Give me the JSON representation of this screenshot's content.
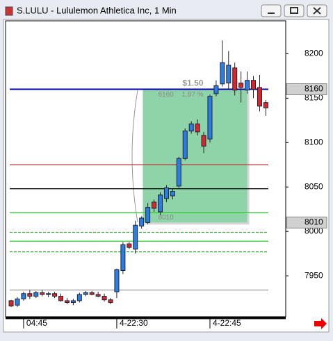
{
  "window_title": "S.LULU - Lululemon Athletica Inc, 1 Min",
  "chart_data": {
    "type": "candlestick",
    "x": [
      -2,
      -1,
      0,
      1,
      2,
      3,
      4,
      5,
      6,
      7,
      8,
      9,
      10,
      11,
      12,
      13,
      14,
      15,
      16,
      17,
      18,
      19,
      20,
      21,
      22,
      23,
      24,
      25,
      26,
      27,
      28,
      29,
      30,
      31,
      32,
      33,
      34,
      35,
      36,
      37,
      38,
      39
    ],
    "open": [
      7922,
      7917,
      7924,
      7930,
      7927,
      7931,
      7929,
      7930,
      7927,
      7922,
      7920,
      7922,
      7929,
      7931,
      7929,
      7927,
      7923,
      7932,
      7956,
      7986,
      7980,
      8006,
      8010,
      8033,
      8022,
      8037,
      8040,
      8051,
      8082,
      8113,
      8121,
      8108,
      8104,
      8155,
      8166,
      8167,
      8184,
      8167,
      8159,
      8170,
      8162,
      8145
    ],
    "high": [
      7923,
      7926,
      7932,
      7934,
      7933,
      7934,
      7932,
      7932,
      7930,
      7925,
      7924,
      7931,
      7933,
      7933,
      7932,
      7930,
      7925,
      7958,
      7988,
      7988,
      8012,
      8017,
      8032,
      8036,
      8044,
      8052,
      8048,
      8084,
      8116,
      8124,
      8126,
      8112,
      8154,
      8170,
      8215,
      8203,
      8190,
      8180,
      8180,
      8175,
      8176,
      8148
    ],
    "low": [
      7915,
      7915,
      7922,
      7924,
      7925,
      7927,
      7926,
      7925,
      7921,
      7918,
      7917,
      7920,
      7927,
      7928,
      7926,
      7921,
      7918,
      7925,
      7952,
      7980,
      7975,
      8003,
      8008,
      8022,
      8018,
      8033,
      8036,
      8049,
      8080,
      8110,
      8108,
      8088,
      8100,
      8152,
      8163,
      8160,
      8153,
      8145,
      8155,
      8150,
      8135,
      8130
    ],
    "close": [
      7916,
      7924,
      7930,
      7927,
      7931,
      7929,
      7930,
      7927,
      7922,
      7920,
      7922,
      7929,
      7931,
      7929,
      7927,
      7923,
      7920,
      7957,
      7985,
      7982,
      8007,
      8015,
      8027,
      8026,
      8041,
      8049,
      8045,
      8082,
      8113,
      8121,
      8112,
      8096,
      8152,
      8164,
      8190,
      8187,
      8159,
      8162,
      8170,
      8160,
      8141,
      8139
    ],
    "up_color": "#2a7de1",
    "down_color": "#d8262c",
    "xlim": [
      -2.9,
      42.2
    ],
    "xticks": [
      {
        "value": 0,
        "label": "04:45"
      },
      {
        "value": 15,
        "label": "4-22:30"
      },
      {
        "value": 30,
        "label": "4-22:45"
      }
    ],
    "ylim": [
      7904,
      8237
    ],
    "yticks": [
      7950,
      8000,
      8050,
      8100,
      8150,
      8200
    ],
    "levels": [
      {
        "value": 8160,
        "color": "#0000b0",
        "dashed": false
      },
      {
        "value": 8075,
        "color": "#b03030",
        "dashed": false
      },
      {
        "value": 8048,
        "color": "#000000",
        "dashed": false
      },
      {
        "value": 8021,
        "color": "#33cc33",
        "dashed": false
      },
      {
        "value": 7999,
        "color": "#33aa33",
        "dashed": true
      },
      {
        "value": 7989,
        "color": "#22cc22",
        "dashed": false
      },
      {
        "value": 7977,
        "color": "#33aa33",
        "dashed": true
      },
      {
        "value": 7934,
        "color": "#999999",
        "dashed": false
      }
    ],
    "measure": {
      "x": [
        19.2,
        36
      ],
      "high": 8160,
      "low": 8010,
      "change_label": "$1.50",
      "percent_label": "1.87 %",
      "color": "#8fd4a8"
    },
    "price_markers": [
      8160,
      8010
    ]
  }
}
